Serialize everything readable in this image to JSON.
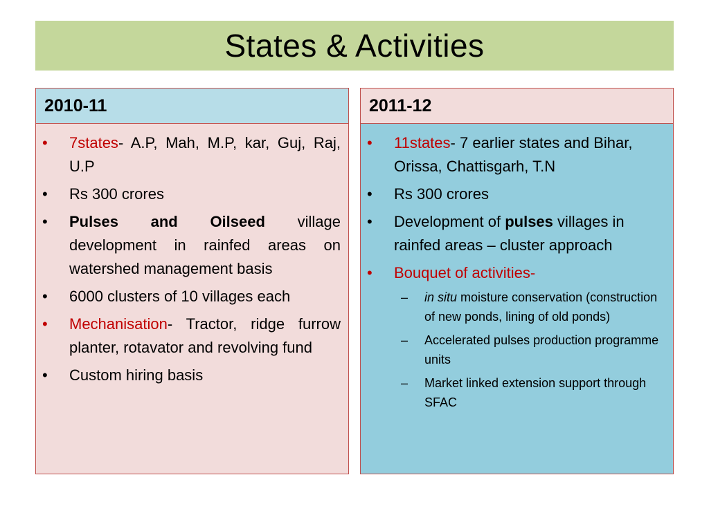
{
  "title": "States & Activities",
  "left": {
    "heading": "2010-11",
    "items": {
      "states_label": "7states",
      "states_text": "- A.P, Mah, M.P, kar, Guj, Raj, U.P",
      "budget": "Rs 300 crores",
      "focus_bold": "Pulses and Oilseed",
      "focus_text": " village development in rainfed areas on watershed management basis",
      "clusters": "6000 clusters of 10 villages each",
      "mech_label": "Mechanisation",
      "mech_text": "- Tractor, ridge furrow planter, rotavator and revolving fund",
      "custom": "Custom hiring basis"
    }
  },
  "right": {
    "heading": "2011-12",
    "items": {
      "states_label": "11states",
      "states_text": "- 7 earlier states and Bihar, Orissa, Chattisgarh, T.N",
      "budget": "Rs 300 crores",
      "dev_pre": "Development of ",
      "dev_bold": "pulses",
      "dev_post": " villages in rainfed areas – cluster approach",
      "bouquet": "Bouquet of activities-",
      "sub": {
        "s1_italic": "in situ",
        "s1_text": " moisture conservation (construction of new ponds, lining of old ponds)",
        "s2": "Accelerated pulses production programme units",
        "s3": "Market linked extension support through SFAC"
      }
    }
  },
  "glyphs": {
    "bullet": "•",
    "dash": "–"
  },
  "colors": {
    "title_bg": "#c4d79b",
    "accent_red": "#c00000",
    "left_bg": "#f2dcdb",
    "right_bg": "#93cddd"
  }
}
